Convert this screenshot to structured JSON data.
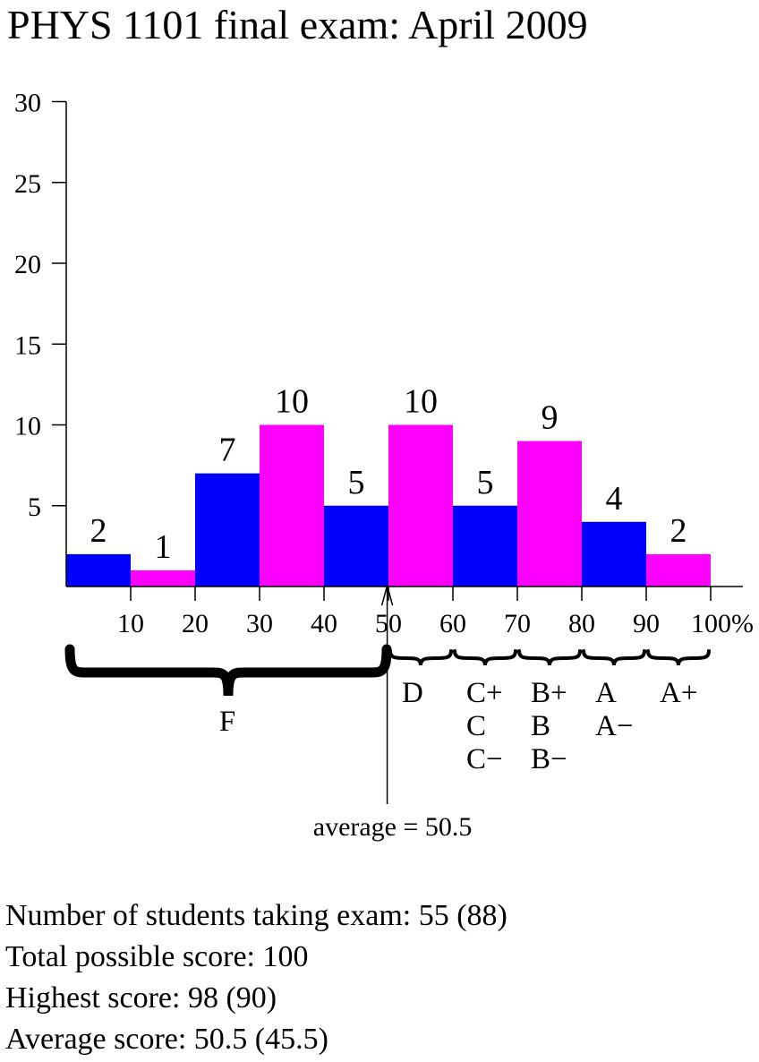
{
  "title": "PHYS 1101 final exam: April 2009",
  "chart_data": {
    "type": "bar",
    "title": "PHYS 1101 final exam: April 2009",
    "bins": [
      [
        0,
        10
      ],
      [
        10,
        20
      ],
      [
        20,
        30
      ],
      [
        30,
        40
      ],
      [
        40,
        50
      ],
      [
        50,
        60
      ],
      [
        60,
        70
      ],
      [
        70,
        80
      ],
      [
        80,
        90
      ],
      [
        90,
        100
      ]
    ],
    "values": [
      2,
      1,
      7,
      10,
      5,
      10,
      5,
      9,
      4,
      2
    ],
    "bar_colors": [
      "#0000ff",
      "#ff00ff",
      "#0000ff",
      "#ff00ff",
      "#0000ff",
      "#ff00ff",
      "#0000ff",
      "#ff00ff",
      "#0000ff",
      "#ff00ff"
    ],
    "ylim": [
      0,
      30
    ],
    "xlim": [
      0,
      105
    ],
    "y_ticks": [
      "30",
      "25",
      "20",
      "15",
      "10",
      "5"
    ],
    "x_ticks": [
      "10",
      "20",
      "30",
      "40",
      "50",
      "60",
      "70",
      "80",
      "90",
      "100%"
    ],
    "grid": false,
    "average": 50.5,
    "average_label": "average = 50.5",
    "grade_ranges": [
      {
        "from": 0,
        "to": 50,
        "lines": [
          "F"
        ]
      },
      {
        "from": 50,
        "to": 60,
        "lines": [
          "D"
        ]
      },
      {
        "from": 60,
        "to": 70,
        "lines": [
          "C+",
          "C",
          "C−"
        ]
      },
      {
        "from": 70,
        "to": 80,
        "lines": [
          "B+",
          "B",
          "B−"
        ]
      },
      {
        "from": 80,
        "to": 90,
        "lines": [
          "A",
          "A−"
        ]
      },
      {
        "from": 90,
        "to": 100,
        "lines": [
          "A+"
        ]
      }
    ]
  },
  "stats": {
    "students": "Number of students taking exam: 55 (88)",
    "total": "Total possible score: 100",
    "highest": "Highest score: 98 (90)",
    "average": "Average score: 50.5 (45.5)"
  }
}
